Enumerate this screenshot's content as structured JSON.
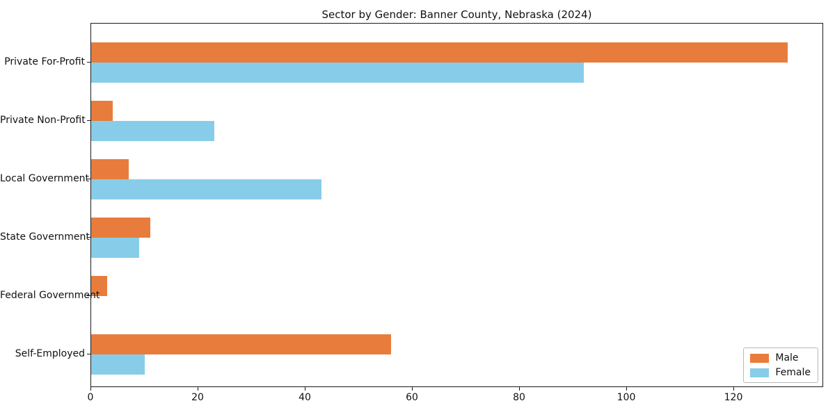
{
  "chart_data": {
    "type": "bar",
    "orientation": "horizontal",
    "title": "Sector by Gender: Banner County, Nebraska (2024)",
    "categories": [
      "Private For-Profit",
      "Private Non-Profit",
      "Local Government",
      "State Government",
      "Federal Government",
      "Self-Employed"
    ],
    "series": [
      {
        "name": "Male",
        "color": "#e87c3c",
        "values": [
          130,
          4,
          7,
          11,
          3,
          56
        ]
      },
      {
        "name": "Female",
        "color": "#87cdea",
        "values": [
          92,
          23,
          43,
          9,
          0,
          10
        ]
      }
    ],
    "xlim": [
      0,
      136.5
    ],
    "xticks": [
      0,
      20,
      40,
      60,
      80,
      100,
      120
    ],
    "xlabel": "",
    "ylabel": "",
    "grid": false,
    "legend_position": "lower right",
    "background_color": "#ffffff",
    "spine_color": "#1a1a1a"
  }
}
